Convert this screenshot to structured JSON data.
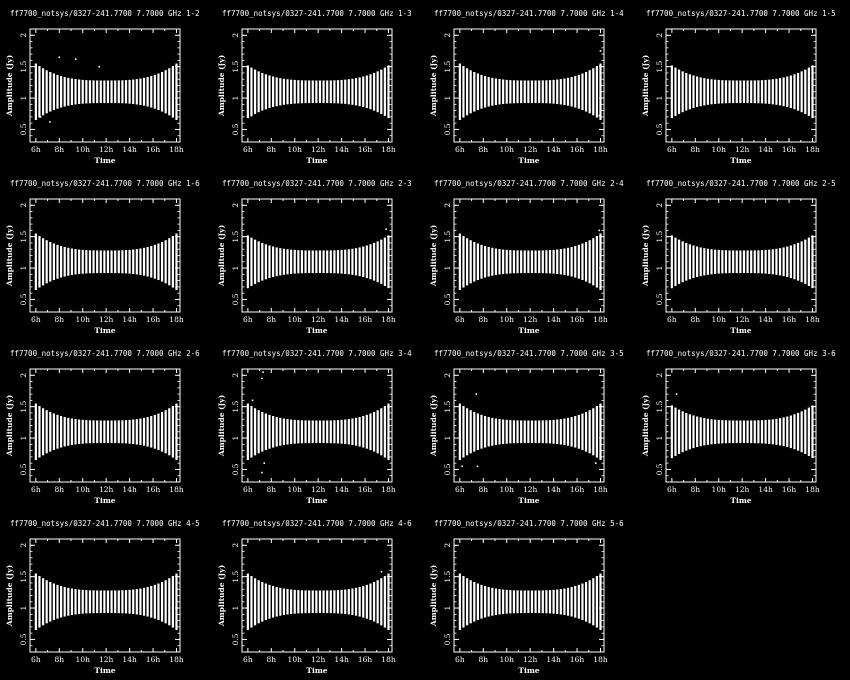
{
  "chart_data": {
    "type": "scatter",
    "layout": "small-multiples",
    "title_prefix": "ff7700_notsys/0327-241.7700 7.7000 GHz",
    "xlabel": "Time",
    "ylabel": "Amplitude (Jy)",
    "xticks": [
      "6h",
      "8h",
      "10h",
      "12h",
      "14h",
      "16h",
      "18h"
    ],
    "xlim": [
      5.5,
      18.3
    ],
    "yticks": [
      "0.5",
      "1",
      "1.5",
      "2"
    ],
    "ylim": [
      0.3,
      2.1
    ],
    "grid": false,
    "colors": {
      "background": "#000000",
      "foreground": "#ffffff"
    },
    "panels": [
      {
        "title": "ff7700_notsys/0327-241.7700 7.7000 GHz  1-2",
        "baseline": "1-2",
        "x_end": 18.0,
        "center": 1.1,
        "spread_mid": 0.18,
        "spread_edge": 0.45,
        "outliers": [
          [
            6.4,
            0.7
          ],
          [
            7.2,
            0.62
          ],
          [
            8.0,
            1.65
          ],
          [
            9.4,
            1.62
          ],
          [
            11.4,
            1.5
          ]
        ]
      },
      {
        "title": "ff7700_notsys/0327-241.7700 7.7000 GHz  1-3",
        "baseline": "1-3",
        "x_end": 18.0,
        "center": 1.1,
        "spread_mid": 0.18,
        "spread_edge": 0.42,
        "outliers": [
          [
            6.3,
            0.72
          ]
        ]
      },
      {
        "title": "ff7700_notsys/0327-241.7700 7.7000 GHz  1-4",
        "baseline": "1-4",
        "x_end": 18.0,
        "center": 1.1,
        "spread_mid": 0.18,
        "spread_edge": 0.45,
        "outliers": [
          [
            17.9,
            0.72
          ],
          [
            18.0,
            1.75
          ]
        ]
      },
      {
        "title": "ff7700_notsys/0327-241.7700 7.7000 GHz  1-5",
        "baseline": "1-5",
        "x_end": 18.0,
        "center": 1.1,
        "spread_mid": 0.18,
        "spread_edge": 0.42,
        "outliers": []
      },
      {
        "title": "ff7700_notsys/0327-241.7700 7.7000 GHz  1-6",
        "baseline": "1-6",
        "x_end": 18.0,
        "center": 1.1,
        "spread_mid": 0.18,
        "spread_edge": 0.45,
        "outliers": []
      },
      {
        "title": "ff7700_notsys/0327-241.7700 7.7000 GHz  2-3",
        "baseline": "2-3",
        "x_end": 18.0,
        "center": 1.1,
        "spread_mid": 0.18,
        "spread_edge": 0.42,
        "outliers": [
          [
            17.8,
            1.62
          ]
        ]
      },
      {
        "title": "ff7700_notsys/0327-241.7700 7.7000 GHz  2-4",
        "baseline": "2-4",
        "x_end": 18.0,
        "center": 1.1,
        "spread_mid": 0.18,
        "spread_edge": 0.45,
        "outliers": [
          [
            17.9,
            1.6
          ]
        ]
      },
      {
        "title": "ff7700_notsys/0327-241.7700 7.7000 GHz  2-5",
        "baseline": "2-5",
        "x_end": 18.0,
        "center": 1.1,
        "spread_mid": 0.18,
        "spread_edge": 0.42,
        "outliers": []
      },
      {
        "title": "ff7700_notsys/0327-241.7700 7.7000 GHz  2-6",
        "baseline": "2-6",
        "x_end": 18.0,
        "center": 1.1,
        "spread_mid": 0.18,
        "spread_edge": 0.45,
        "outliers": []
      },
      {
        "title": "ff7700_notsys/0327-241.7700 7.7000 GHz  3-4",
        "baseline": "3-4",
        "x_end": 18.0,
        "center": 1.1,
        "spread_mid": 0.18,
        "spread_edge": 0.45,
        "outliers": [
          [
            7.2,
            1.95
          ],
          [
            7.3,
            2.05
          ],
          [
            7.2,
            0.45
          ],
          [
            7.4,
            0.6
          ],
          [
            6.4,
            1.6
          ]
        ]
      },
      {
        "title": "ff7700_notsys/0327-241.7700 7.7000 GHz  3-5",
        "baseline": "3-5",
        "x_end": 18.0,
        "center": 1.1,
        "spread_mid": 0.18,
        "spread_edge": 0.45,
        "outliers": [
          [
            6.2,
            0.55
          ],
          [
            7.4,
            1.7
          ],
          [
            7.5,
            0.55
          ],
          [
            17.6,
            0.6
          ]
        ]
      },
      {
        "title": "ff7700_notsys/0327-241.7700 7.7000 GHz  3-6",
        "baseline": "3-6",
        "x_end": 18.0,
        "center": 1.1,
        "spread_mid": 0.18,
        "spread_edge": 0.42,
        "outliers": [
          [
            6.4,
            1.7
          ]
        ]
      },
      {
        "title": "ff7700_notsys/0327-241.7700 7.7000 GHz  4-5",
        "baseline": "4-5",
        "x_end": 18.0,
        "center": 1.1,
        "spread_mid": 0.18,
        "spread_edge": 0.45,
        "outliers": []
      },
      {
        "title": "ff7700_notsys/0327-241.7700 7.7000 GHz  4-6",
        "baseline": "4-6",
        "x_end": 18.0,
        "center": 1.1,
        "spread_mid": 0.18,
        "spread_edge": 0.45,
        "outliers": [
          [
            17.4,
            1.58
          ]
        ]
      },
      {
        "title": "ff7700_notsys/0327-241.7700 7.7000 GHz  5-6",
        "baseline": "5-6",
        "x_end": 18.0,
        "center": 1.1,
        "spread_mid": 0.18,
        "spread_edge": 0.45,
        "outliers": []
      }
    ]
  }
}
